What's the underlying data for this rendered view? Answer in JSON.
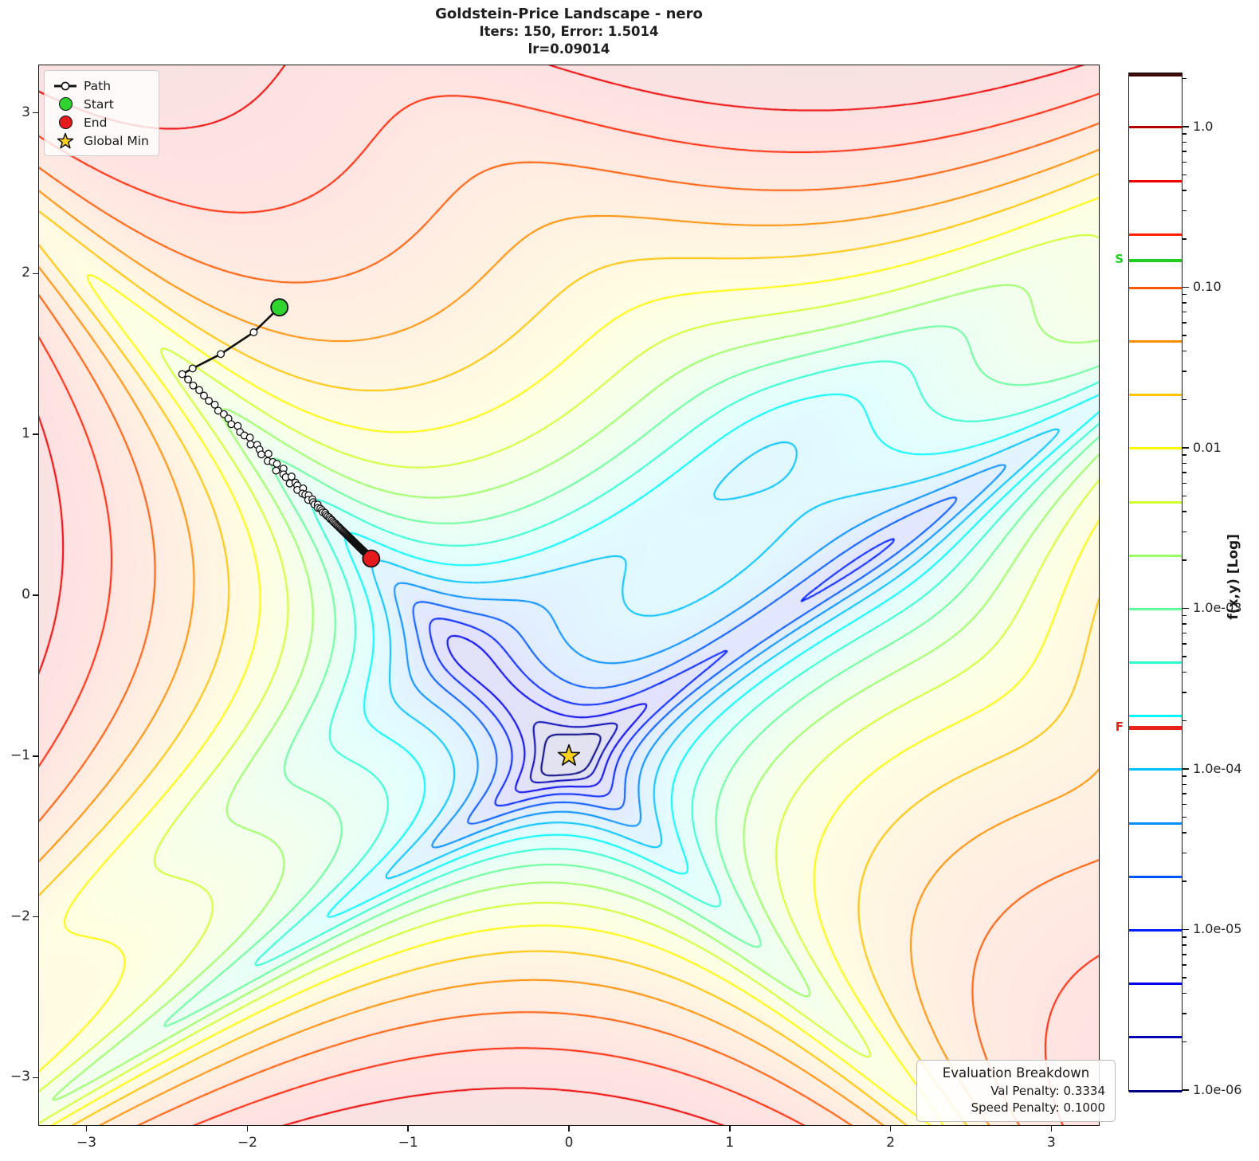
{
  "title": {
    "line1": "Goldstein-Price Landscape - nero",
    "line2": "Iters: 150, Error: 1.5014",
    "line3": "lr=0.09014"
  },
  "stats": {
    "optimizer_name": "nero",
    "iterations": 150,
    "error": 1.5014,
    "learning_rate": 0.09014
  },
  "legend": {
    "items": [
      {
        "label": "Path"
      },
      {
        "label": "Start"
      },
      {
        "label": "End"
      },
      {
        "label": "Global Min"
      }
    ]
  },
  "axes": {
    "xlim": [
      -3.3,
      3.3
    ],
    "ylim": [
      -3.3,
      3.3
    ],
    "x_ticks": [
      -3,
      -2,
      -1,
      0,
      1,
      2,
      3
    ],
    "y_ticks": [
      3,
      2,
      1,
      0,
      -1,
      -2,
      -3
    ],
    "x_tick_labels": [
      "−3",
      "−2",
      "−1",
      "0",
      "1",
      "2",
      "3"
    ],
    "y_tick_labels": [
      "3",
      "2",
      "1",
      "0",
      "−1",
      "−2",
      "−3"
    ]
  },
  "colorbar": {
    "label": "f(x,y) [Log]",
    "tick_labels": [
      "1.0",
      "0.10",
      "0.01",
      "1.0e-03",
      "1.0e-04",
      "1.0e-05",
      "1.0e-06"
    ],
    "tick_exponents": [
      0,
      -1,
      -2,
      -3,
      -4,
      -5,
      -6
    ],
    "top_exponent": 0.337,
    "bottom_exponent": -6,
    "start_marker": {
      "label": "S",
      "exp": -0.83,
      "color": "#1fcf1f"
    },
    "end_marker": {
      "label": "F",
      "exp": -3.74,
      "color": "#e8211d"
    }
  },
  "annotation_box": {
    "title": "Evaluation Breakdown",
    "lines": [
      "Val Penalty: 0.3334",
      "Speed Penalty: 0.1000"
    ]
  },
  "colors": {
    "path": "#111111",
    "start": "#2fd42f",
    "end": "#e41a1c",
    "star": "#ffd21f",
    "contour_top_edge": "#400808"
  },
  "chart_data": {
    "type": "contour",
    "title": "Goldstein-Price Landscape - nero",
    "function": "Goldstein-Price",
    "formula": "f(x,y)=[1+(x+y+1)^2(19-14x+3x^2-14y+6xy+3y^2)]*[30+(2x-3y)^2(18-32x+12x^2+48y-36xy+27y^2)], min-shifted, normalized, log10 color scale",
    "xlim": [
      -3.3,
      3.3
    ],
    "ylim": [
      -3.3,
      3.3
    ],
    "scale": "log10",
    "level_min_exp": -6,
    "level_max_exp": 0,
    "levels_per_decade": 3,
    "colormap": "jet",
    "global_min": [
      0,
      -1
    ],
    "path": {
      "start": [
        -1.8,
        1.79
      ],
      "end": [
        -1.23,
        0.228
      ],
      "waypoints": [
        [
          -1.8,
          1.79
        ],
        [
          -1.96,
          1.635
        ],
        [
          -2.165,
          1.5
        ],
        [
          -2.34,
          1.41
        ],
        [
          -2.405,
          1.375
        ]
      ],
      "leg2_steps": 146,
      "leg2_decay": 0.97,
      "wobble_amp": 0.022,
      "iterations": 150
    }
  }
}
